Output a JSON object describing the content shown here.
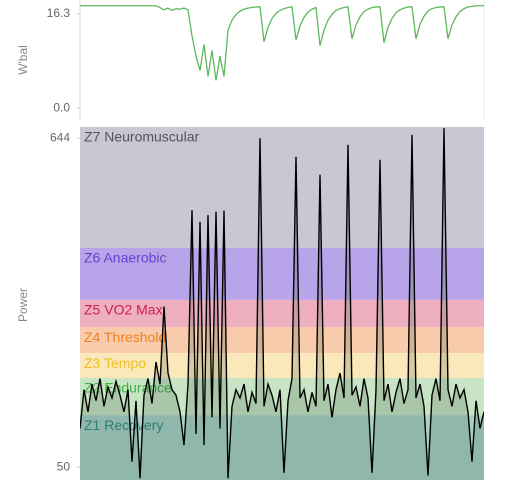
{
  "chart_data": [
    {
      "type": "line",
      "y_label": "W'bal",
      "color": "#5cb85c",
      "ylim": [
        -1.7,
        18.7
      ],
      "yticks": [
        16.3,
        {
          "value": 0,
          "label": "0.0"
        }
      ],
      "values": [
        17.7,
        17.7,
        17.7,
        17.7,
        17.7,
        17.7,
        17.7,
        17.7,
        17.7,
        17.7,
        17.7,
        17.7,
        17.7,
        17.7,
        17.7,
        17.7,
        17.7,
        17.7,
        17.7,
        17.7,
        17.4,
        17.0,
        17.3,
        16.9,
        17.2,
        17.1,
        17.3,
        17.0,
        12.5,
        9,
        6.5,
        11,
        5.5,
        10,
        4.8,
        9,
        5.5,
        13.5,
        15.2,
        16.2,
        16.8,
        17.1,
        17.3,
        17.4,
        17.5,
        17.5,
        11.5,
        14,
        15.5,
        16.4,
        16.9,
        17.2,
        17.4,
        17.5,
        11.8,
        14.2,
        15.7,
        16.6,
        17.1,
        17.4,
        10.8,
        13.5,
        15.2,
        16.2,
        16.9,
        17.2,
        17.4,
        17.5,
        12,
        14.4,
        15.8,
        16.7,
        17.1,
        17.4,
        17.5,
        17.5,
        11.3,
        14,
        15.5,
        16.5,
        17,
        17.3,
        17.5,
        17.5,
        12,
        14.5,
        15.9,
        16.8,
        17.2,
        17.4,
        17.5,
        17.5,
        12,
        14.4,
        15.8,
        16.7,
        17.2,
        17.5,
        17.6,
        17.7,
        17.7,
        17.7
      ]
    },
    {
      "type": "zoned_line",
      "y_label": "Power",
      "color": "#000000",
      "ylim": [
        27,
        664
      ],
      "yticks": [
        644,
        50
      ],
      "zones": [
        {
          "name": "Z7 Neuromuscular",
          "from": 446,
          "to": 700,
          "color": "#c9c7d3",
          "label_color": "#4f5563"
        },
        {
          "name": "Z6 Anaerobic",
          "from": 352,
          "to": 446,
          "color": "#b8a5e9",
          "label_color": "#6a3fd0"
        },
        {
          "name": "Z5 VO2 Max",
          "from": 303,
          "to": 352,
          "color": "#eeafc1",
          "label_color": "#d0204a"
        },
        {
          "name": "Z4 Threshold",
          "from": 256,
          "to": 303,
          "color": "#f7cbab",
          "label_color": "#f08020"
        },
        {
          "name": "Z3 Tempo",
          "from": 211,
          "to": 256,
          "color": "#fbe8ba",
          "label_color": "#f0c020"
        },
        {
          "name": "Z2 Endurance",
          "from": 144,
          "to": 211,
          "color": "#c7e5c4",
          "label_color": "#40b040"
        },
        {
          "name": "Z1 Recovery",
          "from": 0,
          "to": 144,
          "color": "#a7d2c7",
          "label_color": "#2a9080"
        }
      ],
      "values": [
        120,
        190,
        150,
        200,
        170,
        210,
        160,
        195,
        175,
        205,
        180,
        150,
        190,
        60,
        170,
        30,
        180,
        210,
        165,
        240,
        200,
        340,
        220,
        190,
        180,
        150,
        90,
        200,
        514,
        110,
        493,
        90,
        505,
        140,
        511,
        120,
        513,
        30,
        160,
        190,
        175,
        200,
        150,
        185,
        165,
        644,
        160,
        200,
        180,
        150,
        190,
        40,
        170,
        210,
        610,
        175,
        190,
        150,
        185,
        160,
        578,
        170,
        200,
        140,
        190,
        220,
        175,
        632,
        180,
        195,
        160,
        210,
        175,
        40,
        190,
        605,
        170,
        200,
        150,
        185,
        210,
        165,
        190,
        650,
        175,
        200,
        160,
        35,
        180,
        210,
        170,
        662,
        190,
        160,
        200,
        175,
        190,
        150,
        60,
        170,
        120,
        150
      ]
    }
  ]
}
